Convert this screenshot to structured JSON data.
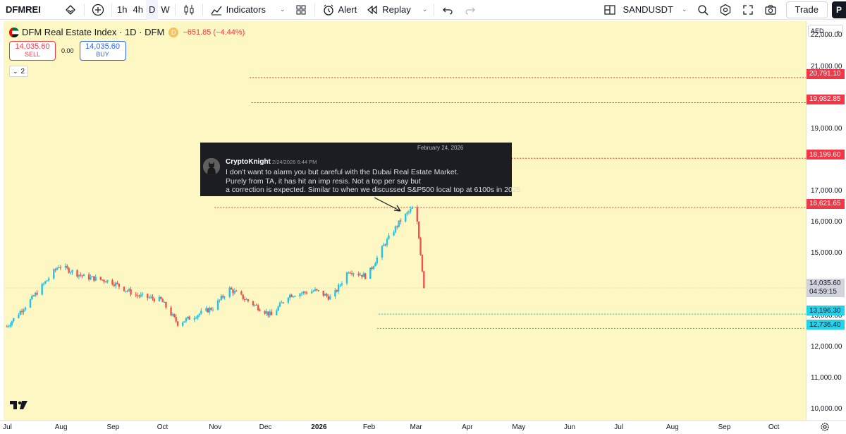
{
  "toolbar": {
    "symbol": "DFMREI",
    "timeframes": [
      {
        "label": "1h",
        "active": false
      },
      {
        "label": "4h",
        "active": false
      },
      {
        "label": "D",
        "active": true
      },
      {
        "label": "W",
        "active": false
      }
    ],
    "indicators_label": "Indicators",
    "alert_label": "Alert",
    "replay_label": "Replay",
    "compare_symbol": "SANDUSDT",
    "trade_label": "Trade",
    "publish_label": "P"
  },
  "legend": {
    "title": "DFM Real Estate Index · 1D · DFM",
    "badge": "D",
    "change": "−651.85 (−4.44%)"
  },
  "trade_boxes": {
    "sell_price": "14,035.60",
    "sell_label": "SELL",
    "spread": "0.00",
    "buy_price": "14,035.60",
    "buy_label": "BUY"
  },
  "collapse_label": "2",
  "currency": "AED",
  "price_ticks": [
    "22,000.00",
    "21,000.00",
    "19,000.00",
    "17,000.00",
    "16,000.00",
    "15,000.00",
    "13,000.00",
    "12,000.00",
    "11,000.00",
    "10,000.00"
  ],
  "level_labels": [
    {
      "value": "20,791.10",
      "color": "#f23645",
      "text_color": "#ffffff"
    },
    {
      "value": "19,982.85",
      "color": "#f23645",
      "text_color": "#ffffff"
    },
    {
      "value": "18,199.60",
      "color": "#f23645",
      "text_color": "#ffffff"
    },
    {
      "value": "16,621.65",
      "color": "#f23645",
      "text_color": "#ffffff"
    },
    {
      "value": "13,196.30",
      "color": "#22d3ee",
      "text_color": "#131722"
    },
    {
      "value": "12,736.40",
      "color": "#22d3ee",
      "text_color": "#131722"
    }
  ],
  "last_price": {
    "value": "14,035.60",
    "countdown": "04:59:15"
  },
  "time_ticks": [
    {
      "label": "Jul",
      "bold": false
    },
    {
      "label": "Aug",
      "bold": false
    },
    {
      "label": "Sep",
      "bold": false
    },
    {
      "label": "Oct",
      "bold": false
    },
    {
      "label": "Nov",
      "bold": false
    },
    {
      "label": "Dec",
      "bold": false
    },
    {
      "label": "2026",
      "bold": true
    },
    {
      "label": "Feb",
      "bold": false
    },
    {
      "label": "Mar",
      "bold": false
    },
    {
      "label": "Apr",
      "bold": false
    },
    {
      "label": "May",
      "bold": false
    },
    {
      "label": "Jun",
      "bold": false
    },
    {
      "label": "Jul",
      "bold": false
    },
    {
      "label": "Aug",
      "bold": false
    },
    {
      "label": "Sep",
      "bold": false
    },
    {
      "label": "Oct",
      "bold": false
    }
  ],
  "tweet": {
    "date": "February 24, 2026",
    "user": "CryptoKnight",
    "time": "2/24/2026 6:44 PM",
    "lines": [
      "I don't want to alarm you but careful with the Dubai Real Estate Market.",
      "Purely from TA, it has hit an imp resis. Not a top per say but",
      "a correction is expected. Similar to when we discussed S&P500 local top at 6100s in 2025."
    ]
  },
  "colors": {
    "up": "#22c3e6",
    "down": "#ef5350",
    "bg": "#fdf7c3"
  },
  "chart_data": {
    "type": "candlestick",
    "title": "DFM Real Estate Index · 1D · DFM",
    "currency": "AED",
    "ylim": [
      9800,
      22600
    ],
    "x_range": [
      "2025-06-28",
      "2026-10-20"
    ],
    "horizontal_levels": [
      20791.1,
      19982.85,
      18199.6,
      16621.65,
      13196.3,
      12736.4
    ],
    "last": 14035.6,
    "close_path": [
      [
        "2025-06-30",
        12800
      ],
      [
        "2025-07-15",
        13700
      ],
      [
        "2025-07-31",
        14750
      ],
      [
        "2025-08-15",
        14400
      ],
      [
        "2025-08-31",
        14250
      ],
      [
        "2025-09-15",
        13800
      ],
      [
        "2025-09-30",
        13650
      ],
      [
        "2025-10-10",
        12900
      ],
      [
        "2025-10-31",
        13400
      ],
      [
        "2025-11-10",
        14000
      ],
      [
        "2025-11-20",
        13650
      ],
      [
        "2025-12-05",
        13150
      ],
      [
        "2025-12-15",
        13800
      ],
      [
        "2025-12-31",
        13950
      ],
      [
        "2026-01-10",
        13700
      ],
      [
        "2026-01-20",
        14600
      ],
      [
        "2026-01-31",
        14400
      ],
      [
        "2026-02-10",
        15400
      ],
      [
        "2026-02-20",
        16200
      ],
      [
        "2026-03-01",
        16700
      ],
      [
        "2026-03-06",
        14035.6
      ]
    ]
  }
}
